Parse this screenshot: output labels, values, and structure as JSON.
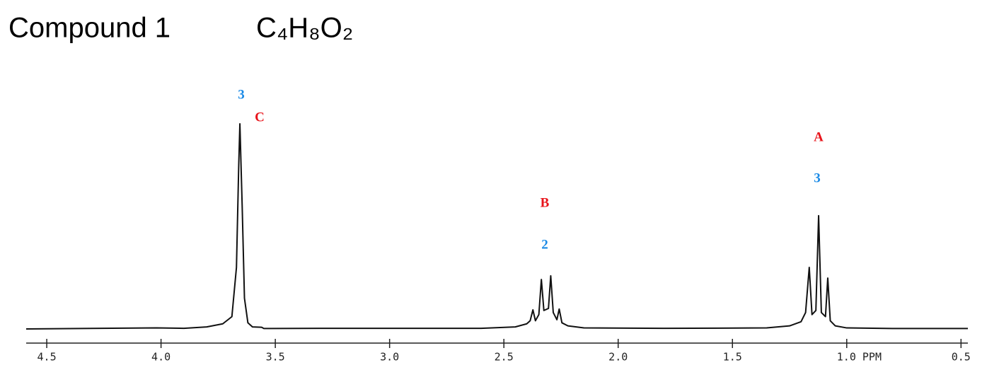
{
  "chart_data": {
    "type": "line",
    "title": "Compound 1",
    "subtitle": "C₄H₈O₂",
    "color": "#111111",
    "xlim": [
      4.59,
      0.47
    ],
    "ylim": [
      0,
      110
    ],
    "xticks": [
      4.5,
      {
        "value": 4,
        "label": "4.0"
      },
      3.5,
      {
        "value": 3,
        "label": "3.0"
      },
      2.5,
      {
        "value": 2,
        "label": "2.0"
      },
      1.5,
      {
        "value": 1,
        "label": "1.0 PPM"
      },
      0.5
    ],
    "x": [
      4.59,
      4.02,
      3.9,
      3.8,
      3.73,
      3.69,
      3.67,
      3.66,
      3.655,
      3.645,
      3.635,
      3.62,
      3.6,
      3.56,
      3.55,
      3.3,
      2.6,
      2.45,
      2.4,
      2.385,
      2.373,
      2.362,
      2.347,
      2.336,
      2.325,
      2.305,
      2.295,
      2.284,
      2.268,
      2.258,
      2.246,
      2.22,
      2.15,
      1.8,
      1.35,
      1.25,
      1.2,
      1.18,
      1.164,
      1.152,
      1.135,
      1.123,
      1.111,
      1.093,
      1.083,
      1.072,
      1.05,
      1.0,
      0.8,
      0.47
    ],
    "values": [
      0,
      0.5,
      0.3,
      1,
      2.5,
      6,
      30,
      80,
      100,
      60,
      15,
      3,
      1,
      0.8,
      0.2,
      0.3,
      0.3,
      1,
      2.5,
      4,
      9.3,
      4,
      7,
      24.1,
      9,
      10,
      25.9,
      8,
      4.5,
      9.7,
      3,
      1.5,
      0.5,
      0.3,
      0.5,
      1.5,
      3.5,
      8,
      30,
      7,
      9,
      55.2,
      8,
      6,
      24.8,
      4,
      1.5,
      0.5,
      0.2,
      0.2
    ],
    "peak_labels": [
      {
        "label": "C",
        "integration": 3
      },
      {
        "label": "B",
        "integration": 2
      },
      {
        "label": "A",
        "integration": 3
      }
    ],
    "label_color": "#e8141b",
    "integration_color": "#1a8ae6"
  }
}
